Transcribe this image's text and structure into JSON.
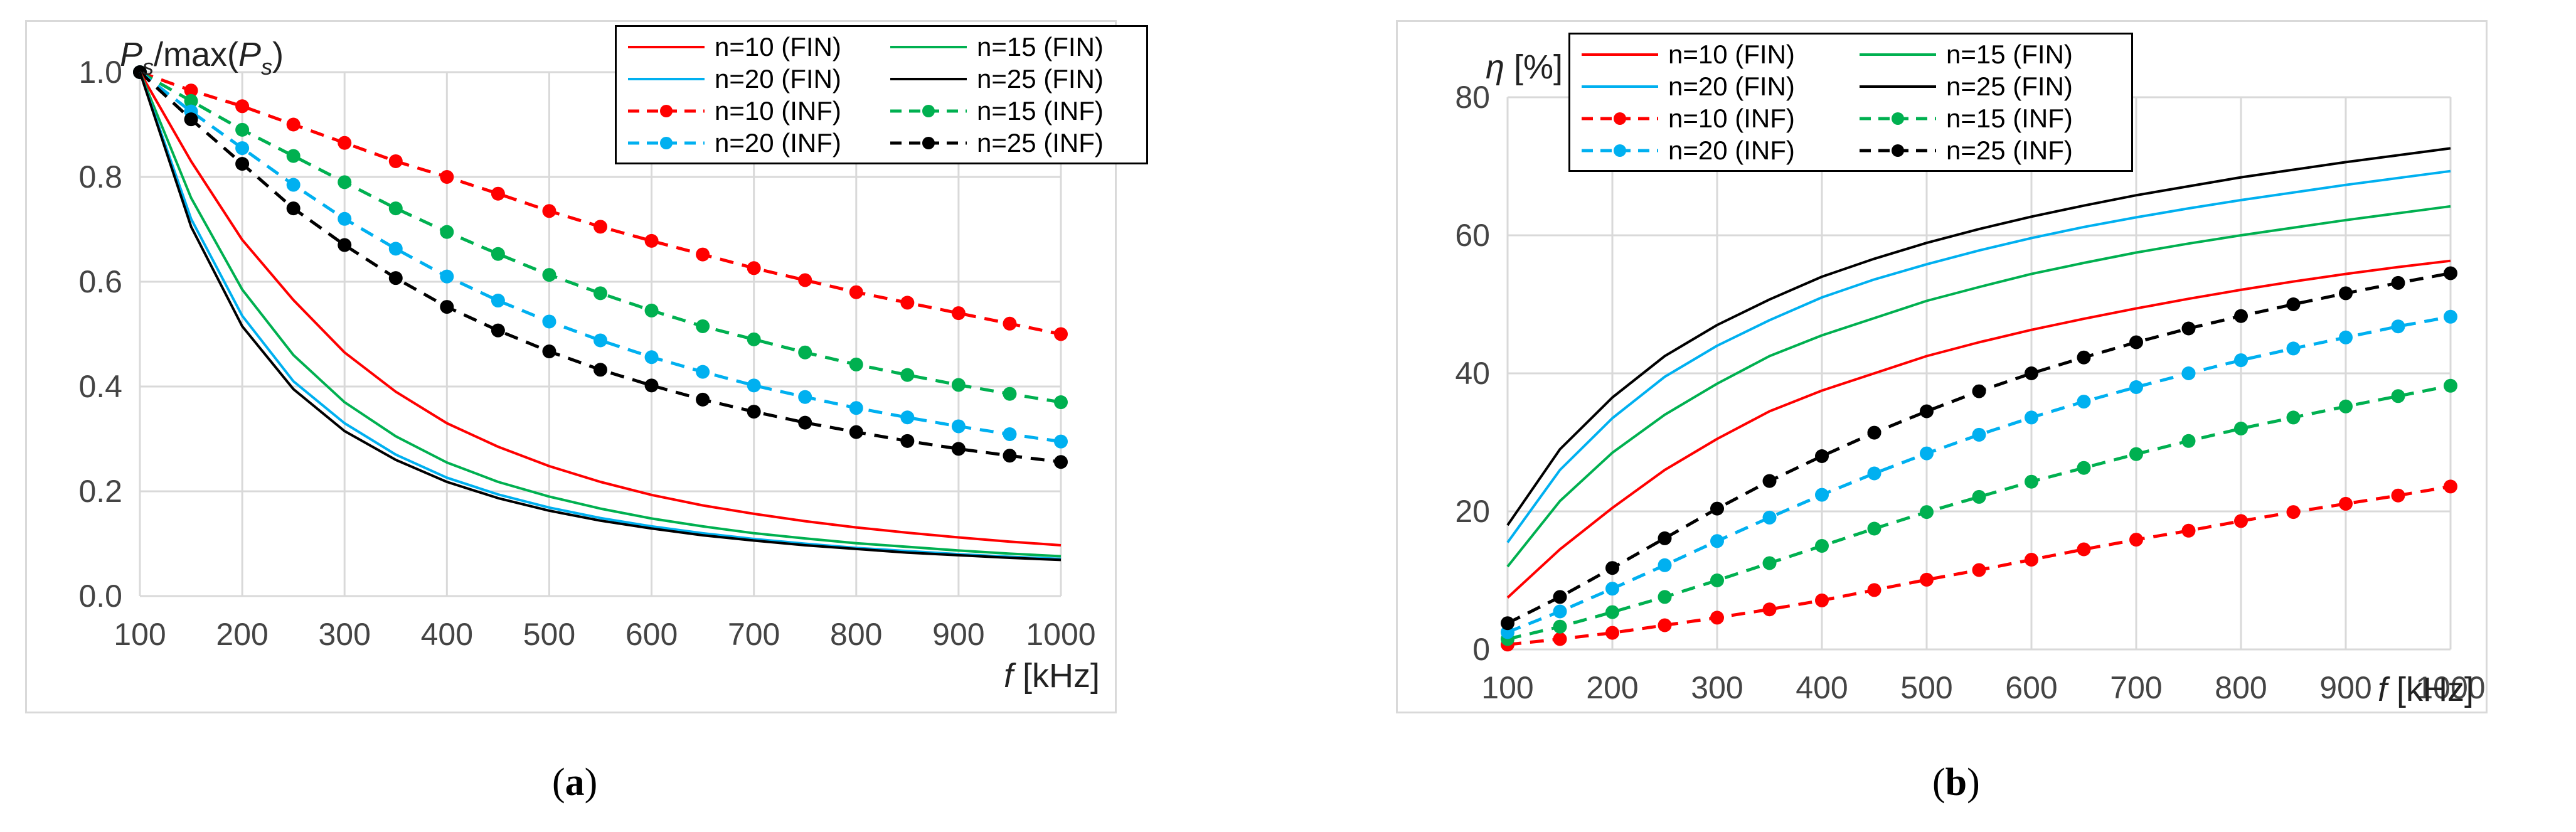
{
  "chart_data": [
    {
      "type": "line",
      "ylabel": "Ps/max(Ps)",
      "xlabel": "f [kHz]",
      "xlim": [
        100,
        1000
      ],
      "ylim": [
        0,
        1.0
      ],
      "x_ticks": [
        "100",
        "200",
        "300",
        "400",
        "500",
        "600",
        "700",
        "800",
        "900",
        "1000"
      ],
      "y_ticks": [
        "0.0",
        "0.2",
        "0.4",
        "0.6",
        "0.8",
        "1.0"
      ],
      "grid": "vertical and horizontal",
      "legend_position": "top-right",
      "x": [
        100,
        150,
        200,
        250,
        300,
        350,
        400,
        450,
        500,
        550,
        600,
        650,
        700,
        750,
        800,
        850,
        900,
        950,
        1000
      ],
      "series": [
        {
          "name": "n=10 (FIN)",
          "color": "#ff0000",
          "style": "solid",
          "values": [
            1.0,
            0.83,
            0.68,
            0.565,
            0.465,
            0.39,
            0.33,
            0.285,
            0.248,
            0.218,
            0.193,
            0.173,
            0.157,
            0.143,
            0.131,
            0.121,
            0.112,
            0.104,
            0.097
          ]
        },
        {
          "name": "n=15 (FIN)",
          "color": "#00b050",
          "style": "solid",
          "values": [
            1.0,
            0.76,
            0.585,
            0.46,
            0.37,
            0.305,
            0.255,
            0.218,
            0.19,
            0.167,
            0.148,
            0.133,
            0.12,
            0.11,
            0.101,
            0.094,
            0.087,
            0.081,
            0.076
          ]
        },
        {
          "name": "n=20 (FIN)",
          "color": "#00b0f0",
          "style": "solid",
          "values": [
            1.0,
            0.72,
            0.535,
            0.41,
            0.33,
            0.27,
            0.226,
            0.194,
            0.169,
            0.149,
            0.133,
            0.12,
            0.109,
            0.1,
            0.092,
            0.086,
            0.08,
            0.075,
            0.071
          ]
        },
        {
          "name": "n=25 (FIN)",
          "color": "#000000",
          "style": "solid",
          "values": [
            1.0,
            0.705,
            0.515,
            0.395,
            0.315,
            0.26,
            0.218,
            0.187,
            0.163,
            0.144,
            0.129,
            0.116,
            0.106,
            0.097,
            0.09,
            0.083,
            0.078,
            0.073,
            0.069
          ]
        },
        {
          "name": "n=10 (INF)",
          "color": "#ff0000",
          "style": "dashed-markers",
          "values": [
            1.0,
            0.965,
            0.935,
            0.9,
            0.865,
            0.83,
            0.8,
            0.768,
            0.735,
            0.705,
            0.678,
            0.652,
            0.626,
            0.603,
            0.58,
            0.56,
            0.54,
            0.52,
            0.5
          ]
        },
        {
          "name": "n=15 (INF)",
          "color": "#00b050",
          "style": "dashed-markers",
          "values": [
            1.0,
            0.945,
            0.89,
            0.84,
            0.79,
            0.74,
            0.695,
            0.653,
            0.613,
            0.578,
            0.545,
            0.515,
            0.49,
            0.465,
            0.442,
            0.422,
            0.403,
            0.386,
            0.37
          ]
        },
        {
          "name": "n=20 (INF)",
          "color": "#00b0f0",
          "style": "dashed-markers",
          "values": [
            1.0,
            0.925,
            0.855,
            0.785,
            0.72,
            0.663,
            0.61,
            0.564,
            0.524,
            0.488,
            0.456,
            0.428,
            0.402,
            0.38,
            0.359,
            0.341,
            0.324,
            0.309,
            0.295
          ]
        },
        {
          "name": "n=25 (INF)",
          "color": "#000000",
          "style": "dashed-markers",
          "values": [
            1.0,
            0.91,
            0.825,
            0.74,
            0.67,
            0.607,
            0.552,
            0.507,
            0.467,
            0.432,
            0.402,
            0.375,
            0.352,
            0.331,
            0.313,
            0.296,
            0.281,
            0.268,
            0.256
          ]
        }
      ]
    },
    {
      "type": "line",
      "ylabel": "η [%]",
      "xlabel": "f [kHz]",
      "xlim": [
        100,
        1000
      ],
      "ylim": [
        0,
        80
      ],
      "x_ticks": [
        "100",
        "200",
        "300",
        "400",
        "500",
        "600",
        "700",
        "800",
        "900",
        "1000"
      ],
      "y_ticks": [
        "0",
        "20",
        "40",
        "60",
        "80"
      ],
      "grid": "vertical and horizontal",
      "legend_position": "top-left",
      "x": [
        100,
        150,
        200,
        250,
        300,
        350,
        400,
        450,
        500,
        550,
        600,
        650,
        700,
        750,
        800,
        850,
        900,
        950,
        1000
      ],
      "series": [
        {
          "name": "n=10 (FIN)",
          "color": "#ff0000",
          "style": "solid",
          "values": [
            7.5,
            14.5,
            20.5,
            26,
            30.5,
            34.5,
            37.5,
            40,
            42.5,
            44.5,
            46.3,
            47.9,
            49.4,
            50.8,
            52.1,
            53.3,
            54.4,
            55.4,
            56.3
          ]
        },
        {
          "name": "n=15 (FIN)",
          "color": "#00b050",
          "style": "solid",
          "values": [
            12,
            21.5,
            28.5,
            34,
            38.5,
            42.5,
            45.5,
            48,
            50.5,
            52.5,
            54.4,
            56,
            57.5,
            58.8,
            60,
            61.1,
            62.2,
            63.2,
            64.2
          ]
        },
        {
          "name": "n=20 (FIN)",
          "color": "#00b0f0",
          "style": "solid",
          "values": [
            15.5,
            26,
            33.5,
            39.5,
            44,
            47.7,
            51,
            53.6,
            55.8,
            57.8,
            59.6,
            61.2,
            62.6,
            63.9,
            65.1,
            66.2,
            67.3,
            68.3,
            69.3
          ]
        },
        {
          "name": "n=25 (FIN)",
          "color": "#000000",
          "style": "solid",
          "values": [
            18,
            29,
            36.5,
            42.5,
            47,
            50.7,
            54,
            56.6,
            58.9,
            60.9,
            62.7,
            64.3,
            65.8,
            67.1,
            68.4,
            69.5,
            70.6,
            71.6,
            72.6
          ]
        },
        {
          "name": "n=10 (INF)",
          "color": "#ff0000",
          "style": "dashed-markers",
          "values": [
            0.7,
            1.5,
            2.4,
            3.5,
            4.6,
            5.8,
            7.1,
            8.6,
            10.1,
            11.5,
            13,
            14.5,
            15.9,
            17.2,
            18.6,
            19.9,
            21.1,
            22.3,
            23.6
          ]
        },
        {
          "name": "n=15 (INF)",
          "color": "#00b050",
          "style": "dashed-markers",
          "values": [
            1.5,
            3.3,
            5.4,
            7.6,
            10,
            12.5,
            15,
            17.5,
            19.9,
            22.1,
            24.3,
            26.3,
            28.3,
            30.2,
            32,
            33.6,
            35.2,
            36.7,
            38.2
          ]
        },
        {
          "name": "n=20 (INF)",
          "color": "#00b0f0",
          "style": "dashed-markers",
          "values": [
            2.5,
            5.5,
            8.8,
            12.2,
            15.7,
            19.1,
            22.4,
            25.5,
            28.4,
            31.1,
            33.6,
            35.9,
            38,
            40,
            41.9,
            43.6,
            45.2,
            46.8,
            48.2
          ]
        },
        {
          "name": "n=25 (INF)",
          "color": "#000000",
          "style": "dashed-markers",
          "values": [
            3.8,
            7.6,
            11.8,
            16.1,
            20.4,
            24.4,
            28,
            31.4,
            34.5,
            37.4,
            40,
            42.3,
            44.5,
            46.5,
            48.3,
            50,
            51.6,
            53.1,
            54.5
          ]
        }
      ]
    }
  ],
  "captions": {
    "a": "a",
    "b": "b"
  }
}
